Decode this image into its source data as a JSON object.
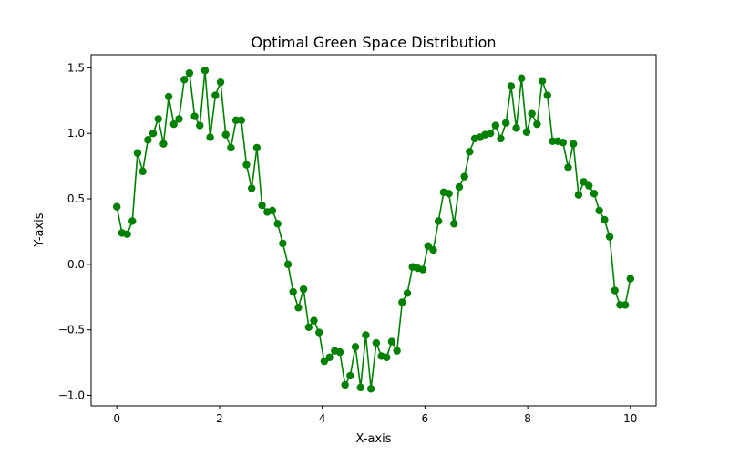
{
  "chart_data": {
    "type": "line",
    "title": "Optimal Green Space Distribution",
    "xlabel": "X-axis",
    "ylabel": "Y-axis",
    "xlim": [
      -0.5,
      10.5
    ],
    "ylim": [
      -1.08,
      1.6
    ],
    "xticks": [
      0,
      2,
      4,
      6,
      8,
      10
    ],
    "xtick_labels": [
      "0",
      "2",
      "4",
      "6",
      "8",
      "10"
    ],
    "yticks": [
      -1.0,
      -0.5,
      0.0,
      0.5,
      1.0,
      1.5
    ],
    "ytick_labels": [
      "−1.0",
      "−0.5",
      "0.0",
      "0.5",
      "1.0",
      "1.5"
    ],
    "grid": false,
    "legend": "none",
    "series": [
      {
        "color": "#008000",
        "marker": "circle",
        "x": [
          0.0,
          0.101,
          0.202,
          0.303,
          0.404,
          0.505,
          0.606,
          0.707,
          0.808,
          0.909,
          1.01,
          1.111,
          1.212,
          1.313,
          1.414,
          1.515,
          1.616,
          1.717,
          1.818,
          1.919,
          2.02,
          2.121,
          2.222,
          2.323,
          2.424,
          2.525,
          2.626,
          2.727,
          2.828,
          2.929,
          3.03,
          3.131,
          3.232,
          3.333,
          3.434,
          3.535,
          3.636,
          3.737,
          3.838,
          3.939,
          4.04,
          4.141,
          4.242,
          4.343,
          4.444,
          4.545,
          4.646,
          4.747,
          4.848,
          4.949,
          5.051,
          5.152,
          5.253,
          5.354,
          5.455,
          5.556,
          5.657,
          5.758,
          5.859,
          5.96,
          6.061,
          6.162,
          6.263,
          6.364,
          6.465,
          6.566,
          6.667,
          6.768,
          6.869,
          6.97,
          7.071,
          7.172,
          7.273,
          7.374,
          7.475,
          7.576,
          7.677,
          7.778,
          7.879,
          7.98,
          8.081,
          8.182,
          8.283,
          8.384,
          8.485,
          8.586,
          8.687,
          8.788,
          8.889,
          8.99,
          9.091,
          9.192,
          9.293,
          9.394,
          9.495,
          9.596,
          9.697,
          9.798,
          9.899,
          10.0
        ],
        "y": [
          0.44,
          0.24,
          0.23,
          0.33,
          0.85,
          0.71,
          0.95,
          1.0,
          1.11,
          0.92,
          1.28,
          1.07,
          1.11,
          1.41,
          1.46,
          1.13,
          1.06,
          1.48,
          0.97,
          1.29,
          1.39,
          0.99,
          0.89,
          1.1,
          1.1,
          0.76,
          0.58,
          0.89,
          0.45,
          0.4,
          0.41,
          0.31,
          0.16,
          0.0,
          -0.21,
          -0.33,
          -0.19,
          -0.48,
          -0.43,
          -0.52,
          -0.74,
          -0.71,
          -0.66,
          -0.67,
          -0.92,
          -0.85,
          -0.63,
          -0.94,
          -0.54,
          -0.95,
          -0.6,
          -0.7,
          -0.71,
          -0.59,
          -0.66,
          -0.29,
          -0.22,
          -0.02,
          -0.03,
          -0.04,
          0.14,
          0.11,
          0.33,
          0.55,
          0.54,
          0.31,
          0.59,
          0.67,
          0.86,
          0.96,
          0.97,
          0.99,
          1.0,
          1.06,
          0.96,
          1.08,
          1.36,
          1.04,
          1.42,
          1.01,
          1.15,
          1.07,
          1.4,
          1.29,
          0.94,
          0.94,
          0.93,
          0.74,
          0.92,
          0.53,
          0.63,
          0.6,
          0.54,
          0.41,
          0.34,
          0.21,
          -0.2,
          -0.31,
          -0.31,
          -0.11
        ]
      }
    ]
  }
}
